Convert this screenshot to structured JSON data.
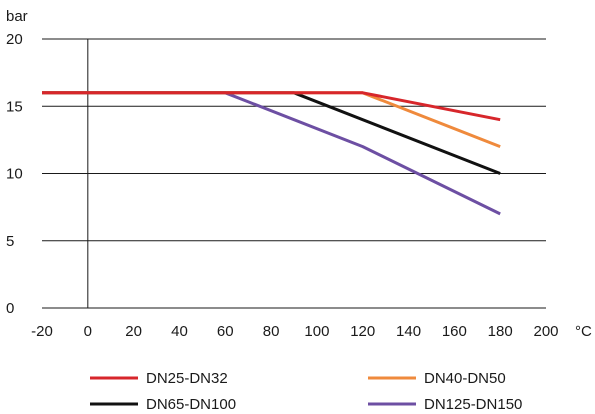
{
  "chart_data": {
    "type": "line",
    "ylabel": "bar",
    "xlabel": "°C",
    "xlim": [
      -20,
      200
    ],
    "ylim": [
      0,
      20
    ],
    "x_ticks": [
      -20,
      0,
      20,
      40,
      60,
      80,
      100,
      120,
      140,
      160,
      180,
      200
    ],
    "y_ticks": [
      0,
      5,
      10,
      15,
      20
    ],
    "grid": "horizontal",
    "legend_position": "bottom",
    "series": [
      {
        "name": "DN25-DN32",
        "color": "#d7262b",
        "points": [
          [
            -20,
            16
          ],
          [
            120,
            16
          ],
          [
            180,
            14
          ]
        ]
      },
      {
        "name": "DN40-DN50",
        "color": "#ef8a3c",
        "points": [
          [
            -20,
            16
          ],
          [
            120,
            16
          ],
          [
            180,
            12
          ]
        ]
      },
      {
        "name": "DN65-DN100",
        "color": "#111111",
        "points": [
          [
            -20,
            16
          ],
          [
            90,
            16
          ],
          [
            180,
            10
          ]
        ]
      },
      {
        "name": "DN125-DN150",
        "color": "#6d4fa3",
        "points": [
          [
            -20,
            16
          ],
          [
            60,
            16
          ],
          [
            120,
            12
          ],
          [
            180,
            7
          ]
        ]
      }
    ]
  }
}
